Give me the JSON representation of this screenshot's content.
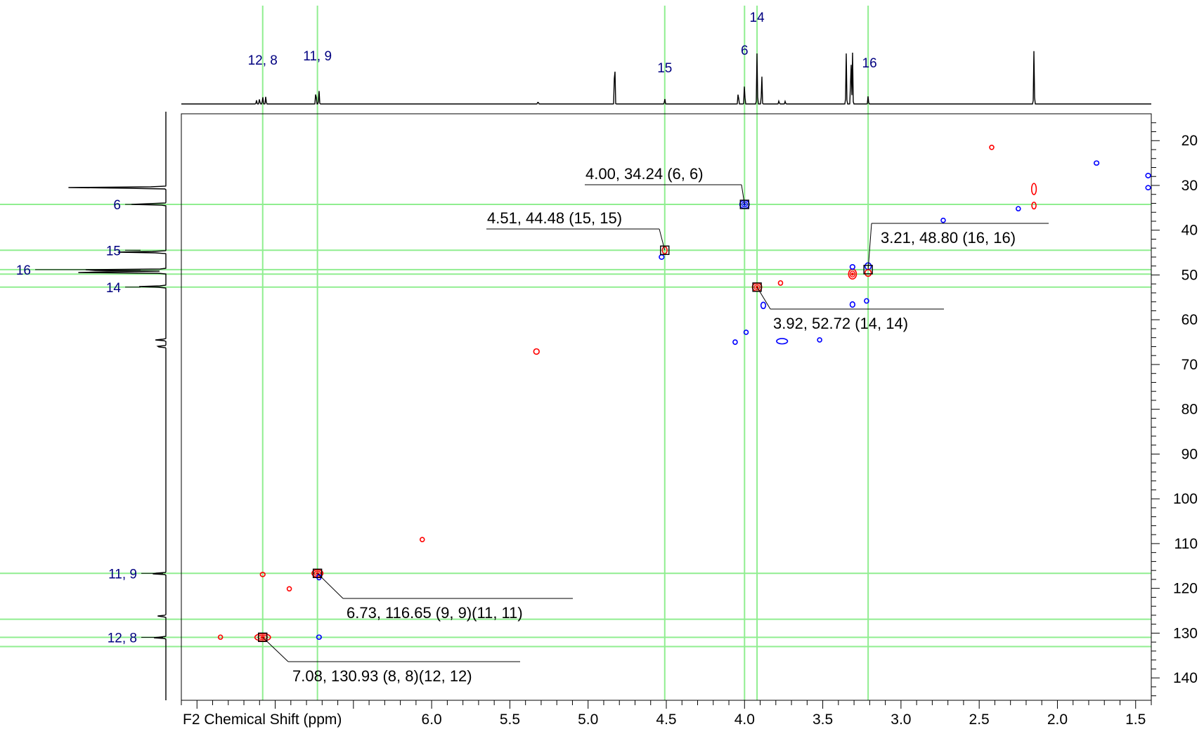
{
  "chart_data": {
    "type": "hsqc-2d-nmr",
    "xlabel": "F2 Chemical Shift (ppm)",
    "ylabel": "",
    "xlim": [
      7.6,
      1.4
    ],
    "ylim": [
      14,
      145
    ],
    "x_ticks": [
      6.0,
      5.5,
      5.0,
      4.5,
      4.0,
      3.5,
      3.0,
      2.5,
      2.0,
      1.5
    ],
    "x_tick_labels": [
      "6.0",
      "5.5",
      "5.0",
      "4.5",
      "4.0",
      "3.5",
      "3.0",
      "2.5",
      "2.0",
      "1.5"
    ],
    "y_ticks": [
      20,
      30,
      40,
      50,
      60,
      70,
      80,
      90,
      100,
      110,
      120,
      130,
      140
    ],
    "y_tick_labels": [
      "20",
      "30",
      "40",
      "50",
      "60",
      "70",
      "80",
      "90",
      "100",
      "110",
      "120",
      "130",
      "140"
    ],
    "grid": false,
    "guide_color": "#90ee90",
    "colors": {
      "positive": "#ff0000",
      "negative": "#0000ff",
      "label": "#000080",
      "guide": "#90ee90"
    },
    "v_guides": [
      7.08,
      6.73,
      4.51,
      4.0,
      3.92,
      3.21
    ],
    "h_guides": [
      34.24,
      44.48,
      48.8,
      49.8,
      52.72,
      116.65,
      126.9,
      130.93,
      133.0
    ],
    "f2_labels": [
      {
        "text": "12, 8",
        "ppm": 7.08
      },
      {
        "text": "11, 9",
        "ppm": 6.73
      },
      {
        "text": "15",
        "ppm": 4.51
      },
      {
        "text": "6",
        "ppm": 4.0
      },
      {
        "text": "14",
        "ppm": 3.92
      },
      {
        "text": "16",
        "ppm": 3.21
      }
    ],
    "f1_labels": [
      {
        "text": "6",
        "ppm": 34.24
      },
      {
        "text": "15",
        "ppm": 44.48
      },
      {
        "text": "16",
        "ppm": 48.8
      },
      {
        "text": "14",
        "ppm": 52.72
      },
      {
        "text": "11, 9",
        "ppm": 116.65
      },
      {
        "text": "12, 8",
        "ppm": 130.93
      }
    ],
    "annotations": [
      {
        "text": "4.00, 34.24 (6, 6)",
        "x": 4.0,
        "y": 34.24
      },
      {
        "text": "4.51, 44.48 (15, 15)",
        "x": 4.51,
        "y": 44.48
      },
      {
        "text": "3.21, 48.80 (16, 16)",
        "x": 3.21,
        "y": 48.8
      },
      {
        "text": "3.92, 52.72 (14, 14)",
        "x": 3.92,
        "y": 52.72
      },
      {
        "text": "6.73, 116.65 (9, 9)(11, 11)",
        "x": 6.73,
        "y": 116.65
      },
      {
        "text": "7.08, 130.93 (8, 8)(12, 12)",
        "x": 7.08,
        "y": 130.93
      }
    ],
    "cross_peaks": [
      {
        "x": 4.0,
        "y": 34.24,
        "phase": "negative",
        "w": 0.06,
        "h": 1.8
      },
      {
        "x": 4.51,
        "y": 44.48,
        "phase": "positive",
        "w": 0.03,
        "h": 1.6
      },
      {
        "x": 4.53,
        "y": 46.0,
        "phase": "negative",
        "w": 0.03,
        "h": 1.0
      },
      {
        "x": 3.21,
        "y": 48.8,
        "phase": "mixed",
        "w": 0.04,
        "h": 3.0
      },
      {
        "x": 3.92,
        "y": 52.72,
        "phase": "positive",
        "w": 0.06,
        "h": 1.8
      },
      {
        "x": 3.88,
        "y": 56.8,
        "phase": "negative",
        "w": 0.03,
        "h": 1.4
      },
      {
        "x": 3.77,
        "y": 51.8,
        "phase": "positive",
        "w": 0.02,
        "h": 1.0
      },
      {
        "x": 3.31,
        "y": 49.8,
        "phase": "positive",
        "w": 0.05,
        "h": 2.2
      },
      {
        "x": 3.31,
        "y": 48.2,
        "phase": "negative",
        "w": 0.03,
        "h": 1.0
      },
      {
        "x": 3.31,
        "y": 56.6,
        "phase": "negative",
        "w": 0.03,
        "h": 1.2
      },
      {
        "x": 3.22,
        "y": 55.8,
        "phase": "negative",
        "w": 0.02,
        "h": 1.0
      },
      {
        "x": 3.76,
        "y": 64.8,
        "phase": "negative",
        "w": 0.07,
        "h": 1.2
      },
      {
        "x": 4.06,
        "y": 65.0,
        "phase": "negative",
        "w": 0.012,
        "h": 1.0
      },
      {
        "x": 3.99,
        "y": 62.8,
        "phase": "negative",
        "w": 0.005,
        "h": 0.5
      },
      {
        "x": 3.52,
        "y": 64.5,
        "phase": "negative",
        "w": 0.008,
        "h": 0.6
      },
      {
        "x": 5.33,
        "y": 67.1,
        "phase": "positive",
        "w": 0.035,
        "h": 1.2
      },
      {
        "x": 2.73,
        "y": 37.8,
        "phase": "negative",
        "w": 0.01,
        "h": 0.8
      },
      {
        "x": 2.42,
        "y": 21.5,
        "phase": "positive",
        "w": 0.01,
        "h": 0.8
      },
      {
        "x": 2.25,
        "y": 35.2,
        "phase": "negative",
        "w": 0.008,
        "h": 0.5
      },
      {
        "x": 2.15,
        "y": 30.8,
        "phase": "positive",
        "w": 0.03,
        "h": 2.5
      },
      {
        "x": 2.15,
        "y": 34.5,
        "phase": "positive",
        "w": 0.01,
        "h": 1.5
      },
      {
        "x": 1.75,
        "y": 25.0,
        "phase": "negative",
        "w": 0.03,
        "h": 0.8
      },
      {
        "x": 1.42,
        "y": 27.8,
        "phase": "negative",
        "w": 0.03,
        "h": 1.0
      },
      {
        "x": 1.42,
        "y": 30.5,
        "phase": "negative",
        "w": 0.03,
        "h": 0.8
      },
      {
        "x": 6.06,
        "y": 109.1,
        "phase": "positive",
        "w": 0.01,
        "h": 0.6
      },
      {
        "x": 6.73,
        "y": 116.65,
        "phase": "positive",
        "w": 0.07,
        "h": 1.6
      },
      {
        "x": 6.72,
        "y": 117.5,
        "phase": "negative",
        "w": 0.02,
        "h": 1.2
      },
      {
        "x": 7.08,
        "y": 116.9,
        "phase": "positive",
        "w": 0.03,
        "h": 0.8
      },
      {
        "x": 6.91,
        "y": 120.1,
        "phase": "positive",
        "w": 0.015,
        "h": 0.8
      },
      {
        "x": 7.08,
        "y": 130.93,
        "phase": "positive",
        "w": 0.1,
        "h": 1.6
      },
      {
        "x": 6.72,
        "y": 130.9,
        "phase": "negative",
        "w": 0.03,
        "h": 0.8
      },
      {
        "x": 7.35,
        "y": 130.9,
        "phase": "positive",
        "w": 0.01,
        "h": 0.6
      }
    ],
    "f2_projection_peaks": [
      {
        "x": 7.12,
        "h": 0.07
      },
      {
        "x": 7.1,
        "h": 0.1
      },
      {
        "x": 7.08,
        "h": 0.14
      },
      {
        "x": 7.06,
        "h": 0.14
      },
      {
        "x": 6.74,
        "h": 0.26
      },
      {
        "x": 6.72,
        "h": 0.24
      },
      {
        "x": 5.32,
        "h": 0.05
      },
      {
        "x": 4.83,
        "h": 0.95
      },
      {
        "x": 4.51,
        "h": 0.1
      },
      {
        "x": 4.04,
        "h": 0.24
      },
      {
        "x": 4.0,
        "h": 0.38
      },
      {
        "x": 3.92,
        "h": 0.92
      },
      {
        "x": 3.89,
        "h": 0.55
      },
      {
        "x": 3.78,
        "h": 0.06
      },
      {
        "x": 3.74,
        "h": 0.05
      },
      {
        "x": 3.35,
        "h": 0.9
      },
      {
        "x": 3.32,
        "h": 0.95
      },
      {
        "x": 3.31,
        "h": 0.95
      },
      {
        "x": 3.21,
        "h": 0.14
      },
      {
        "x": 2.15,
        "h": 0.95
      }
    ],
    "f1_projection_peaks": [
      {
        "y": 30.5,
        "h": 0.95
      },
      {
        "y": 34.2,
        "h": 0.35
      },
      {
        "y": 44.9,
        "h": 0.45
      },
      {
        "y": 48.9,
        "h": 1.0
      },
      {
        "y": 49.4,
        "h": 0.98
      },
      {
        "y": 52.6,
        "h": 0.25
      },
      {
        "y": 64.5,
        "h": 0.1
      },
      {
        "y": 66.0,
        "h": 0.1
      },
      {
        "y": 116.7,
        "h": 0.15
      },
      {
        "y": 126.2,
        "h": 0.08
      },
      {
        "y": 131.0,
        "h": 0.12
      }
    ]
  }
}
